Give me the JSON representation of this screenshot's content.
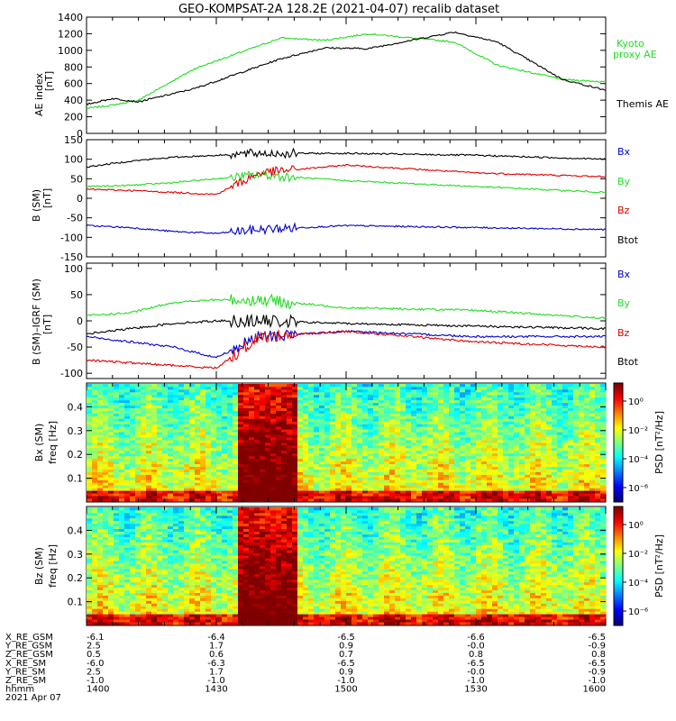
{
  "title": "GEO-KOMPSAT-2A 128.2E (2021-04-07) recalib dataset",
  "colors": {
    "black": "#000000",
    "green": "#22dd22",
    "red": "#dd0000",
    "blue": "#0000cc"
  },
  "panels": {
    "ae": {
      "ylabel1": "AE index",
      "ylabel2": "[nT]",
      "ticks": [
        "0",
        "200",
        "400",
        "600",
        "800",
        "1000",
        "1200",
        "1400"
      ],
      "legend": [
        {
          "text": "Kyoto",
          "color": "green"
        },
        {
          "text": "proxy AE",
          "color": "green"
        },
        {
          "text": "Themis AE",
          "color": "black"
        }
      ]
    },
    "bsm": {
      "ylabel1": "B (SM)",
      "ylabel2": "[nT]",
      "ticks": [
        "-150",
        "-100",
        "-50",
        "0",
        "50",
        "100",
        "150"
      ],
      "legend": [
        {
          "text": "Bx",
          "color": "blue"
        },
        {
          "text": "By",
          "color": "green"
        },
        {
          "text": "Bz",
          "color": "red"
        },
        {
          "text": "Btot",
          "color": "black"
        }
      ]
    },
    "bigrf": {
      "ylabel1": "B (SM)–IGRF (SM)",
      "ylabel2": "[nT]",
      "ticks": [
        "-100",
        "-50",
        "0",
        "50",
        "100"
      ],
      "legend": [
        {
          "text": "Bx",
          "color": "blue"
        },
        {
          "text": "By",
          "color": "green"
        },
        {
          "text": "Bz",
          "color": "red"
        },
        {
          "text": "Btot",
          "color": "black"
        }
      ]
    },
    "specx": {
      "ylabel1": "Bx (SM)",
      "ylabel2": "freq [Hz]",
      "ticks": [
        "0.1",
        "0.2",
        "0.3",
        "0.4"
      ]
    },
    "specz": {
      "ylabel1": "Bz (SM)",
      "ylabel2": "freq [Hz]",
      "ticks": [
        "0.1",
        "0.2",
        "0.3",
        "0.4"
      ]
    }
  },
  "colorbar": {
    "label": "PSD [nT²/Hz]",
    "ticks": [
      "10⁰",
      "10⁻²",
      "10⁻⁴",
      "10⁻⁶"
    ]
  },
  "orbit": {
    "row_labels": [
      "X_RE_GSM",
      "Y_RE_GSM",
      "Z_RE_GSM",
      "X_RE_SM",
      "Y_RE_SM",
      "Z_RE_SM",
      "hhmm",
      "2021 Apr 07"
    ],
    "columns": [
      [
        "-6.1",
        "2.5",
        "0.5",
        "-6.0",
        "2.5",
        "-1.0",
        "1400"
      ],
      [
        "-6.4",
        "1.7",
        "0.6",
        "-6.3",
        "1.7",
        "-1.0",
        "1430"
      ],
      [
        "-6.5",
        "0.9",
        "0.7",
        "-6.5",
        "0.9",
        "-1.0",
        "1500"
      ],
      [
        "-6.6",
        "-0.0",
        "0.8",
        "-6.5",
        "-0.0",
        "-1.0",
        "1530"
      ],
      [
        "-6.5",
        "-0.9",
        "0.8",
        "-6.5",
        "-0.9",
        "-1.0",
        "1600"
      ]
    ]
  },
  "chart_data": [
    {
      "type": "line",
      "title": "GEO-KOMPSAT-2A 128.2E (2021-04-07) recalib dataset",
      "x_label": "hhmm",
      "x": [
        "1400",
        "1415",
        "1430",
        "1445",
        "1500",
        "1515",
        "1530",
        "1545",
        "1600"
      ],
      "ylabel": "AE index [nT]",
      "ylim": [
        0,
        1400
      ],
      "series": [
        {
          "name": "Kyoto proxy AE",
          "color": "green",
          "values": [
            300,
            340,
            400,
            780,
            1150,
            1120,
            1200,
            1100,
            820,
            650,
            620
          ]
        },
        {
          "name": "Themis AE",
          "color": "black",
          "values": [
            350,
            420,
            380,
            540,
            900,
            1030,
            1020,
            1220,
            1100,
            650,
            520
          ]
        }
      ],
      "x_values": [
        "1400",
        "1406",
        "1412",
        "1425",
        "1445",
        "1455",
        "1505",
        "1525",
        "1535",
        "1550",
        "1600"
      ]
    },
    {
      "type": "line",
      "ylabel": "B (SM) [nT]",
      "ylim": [
        -150,
        150
      ],
      "x_values": [
        "1400",
        "1410",
        "1420",
        "1430",
        "1440",
        "1500",
        "1530",
        "1600"
      ],
      "series": [
        {
          "name": "Bx",
          "color": "blue",
          "values": [
            -70,
            -75,
            -85,
            -90,
            -80,
            -70,
            -75,
            -80
          ]
        },
        {
          "name": "By",
          "color": "green",
          "values": [
            30,
            33,
            40,
            50,
            60,
            45,
            30,
            15
          ]
        },
        {
          "name": "Bz",
          "color": "red",
          "values": [
            23,
            20,
            15,
            10,
            65,
            85,
            65,
            55
          ]
        },
        {
          "name": "Btot",
          "color": "black",
          "values": [
            80,
            95,
            105,
            110,
            115,
            115,
            110,
            100
          ]
        }
      ]
    },
    {
      "type": "line",
      "ylabel": "B (SM)-IGRF (SM) [nT]",
      "ylim": [
        -100,
        100
      ],
      "x_values": [
        "1400",
        "1410",
        "1420",
        "1430",
        "1440",
        "1500",
        "1530",
        "1600"
      ],
      "series": [
        {
          "name": "Bx",
          "color": "blue",
          "values": [
            -30,
            -40,
            -50,
            -70,
            -30,
            -20,
            -30,
            -30
          ]
        },
        {
          "name": "By",
          "color": "green",
          "values": [
            10,
            15,
            35,
            40,
            40,
            25,
            20,
            5
          ]
        },
        {
          "name": "Bz",
          "color": "red",
          "values": [
            -75,
            -80,
            -85,
            -90,
            -30,
            -20,
            -40,
            -50
          ]
        },
        {
          "name": "Btot",
          "color": "black",
          "values": [
            -25,
            -15,
            -5,
            0,
            0,
            -5,
            -10,
            -15
          ]
        }
      ]
    },
    {
      "type": "heatmap",
      "ylabel": "Bx (SM) freq [Hz]",
      "ylim": [
        0,
        0.5
      ],
      "colorbar_label": "PSD [nT²/Hz]"
    },
    {
      "type": "heatmap",
      "ylabel": "Bz (SM) freq [Hz]",
      "ylim": [
        0,
        0.5
      ],
      "colorbar_label": "PSD [nT²/Hz]"
    }
  ]
}
